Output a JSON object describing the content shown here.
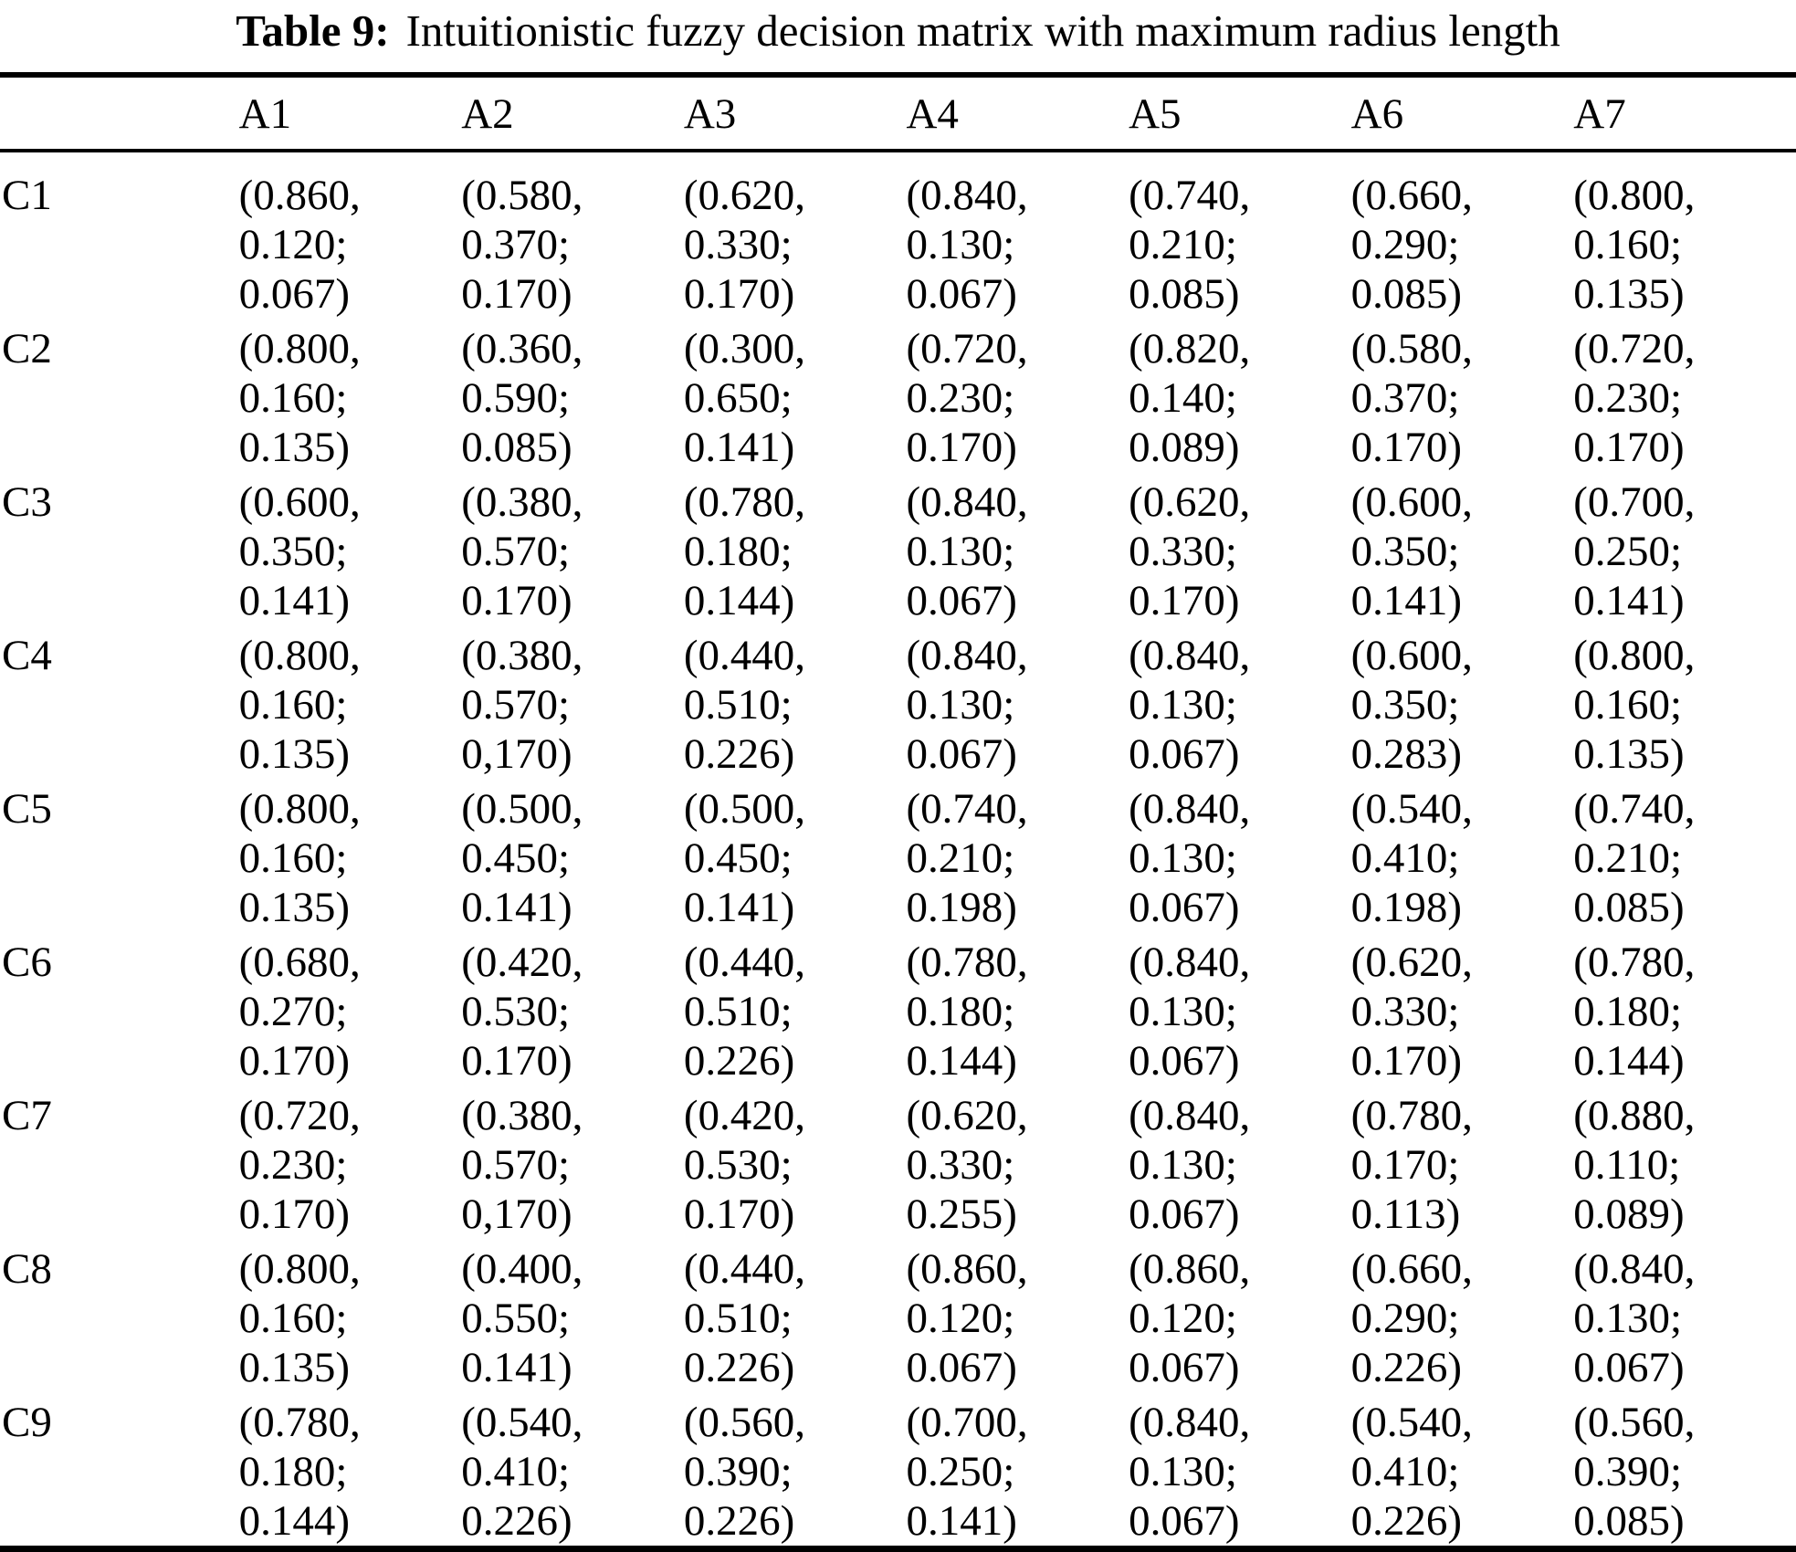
{
  "title": {
    "label": "Table 9:",
    "text": "Intuitionistic fuzzy decision matrix with maximum radius length"
  },
  "table": {
    "columns": [
      "A1",
      "A2",
      "A3",
      "A4",
      "A5",
      "A6",
      "A7"
    ],
    "rows": [
      {
        "label": "C1",
        "cells": [
          [
            "(0.860,",
            "0.120;",
            "0.067)"
          ],
          [
            "(0.580,",
            "0.370;",
            "0.170)"
          ],
          [
            "(0.620,",
            "0.330;",
            "0.170)"
          ],
          [
            "(0.840,",
            "0.130;",
            "0.067)"
          ],
          [
            "(0.740,",
            "0.210;",
            "0.085)"
          ],
          [
            "(0.660,",
            "0.290;",
            "0.085)"
          ],
          [
            "(0.800,",
            "0.160;",
            "0.135)"
          ]
        ]
      },
      {
        "label": "C2",
        "cells": [
          [
            "(0.800,",
            "0.160;",
            "0.135)"
          ],
          [
            "(0.360,",
            "0.590;",
            "0.085)"
          ],
          [
            "(0.300,",
            "0.650;",
            "0.141)"
          ],
          [
            "(0.720,",
            "0.230;",
            "0.170)"
          ],
          [
            "(0.820,",
            "0.140;",
            "0.089)"
          ],
          [
            "(0.580,",
            "0.370;",
            "0.170)"
          ],
          [
            "(0.720,",
            "0.230;",
            "0.170)"
          ]
        ]
      },
      {
        "label": "C3",
        "cells": [
          [
            "(0.600,",
            "0.350;",
            "0.141)"
          ],
          [
            "(0.380,",
            "0.570;",
            "0.170)"
          ],
          [
            "(0.780,",
            "0.180;",
            "0.144)"
          ],
          [
            "(0.840,",
            "0.130;",
            "0.067)"
          ],
          [
            "(0.620,",
            "0.330;",
            "0.170)"
          ],
          [
            "(0.600,",
            "0.350;",
            "0.141)"
          ],
          [
            "(0.700,",
            "0.250;",
            "0.141)"
          ]
        ]
      },
      {
        "label": "C4",
        "cells": [
          [
            "(0.800,",
            "0.160;",
            "0.135)"
          ],
          [
            "(0.380,",
            "0.570;",
            "0,170)"
          ],
          [
            "(0.440,",
            "0.510;",
            "0.226)"
          ],
          [
            "(0.840,",
            "0.130;",
            "0.067)"
          ],
          [
            "(0.840,",
            "0.130;",
            "0.067)"
          ],
          [
            "(0.600,",
            "0.350;",
            "0.283)"
          ],
          [
            "(0.800,",
            "0.160;",
            "0.135)"
          ]
        ]
      },
      {
        "label": "C5",
        "cells": [
          [
            "(0.800,",
            "0.160;",
            "0.135)"
          ],
          [
            "(0.500,",
            "0.450;",
            "0.141)"
          ],
          [
            "(0.500,",
            "0.450;",
            "0.141)"
          ],
          [
            "(0.740,",
            "0.210;",
            "0.198)"
          ],
          [
            "(0.840,",
            "0.130;",
            "0.067)"
          ],
          [
            "(0.540,",
            "0.410;",
            "0.198)"
          ],
          [
            "(0.740,",
            "0.210;",
            "0.085)"
          ]
        ]
      },
      {
        "label": "C6",
        "cells": [
          [
            "(0.680,",
            "0.270;",
            "0.170)"
          ],
          [
            "(0.420,",
            "0.530;",
            "0.170)"
          ],
          [
            "(0.440,",
            "0.510;",
            "0.226)"
          ],
          [
            "(0.780,",
            "0.180;",
            "0.144)"
          ],
          [
            "(0.840,",
            "0.130;",
            "0.067)"
          ],
          [
            "(0.620,",
            "0.330;",
            "0.170)"
          ],
          [
            "(0.780,",
            "0.180;",
            "0.144)"
          ]
        ]
      },
      {
        "label": "C7",
        "cells": [
          [
            "(0.720,",
            "0.230;",
            "0.170)"
          ],
          [
            "(0.380,",
            "0.570;",
            "0,170)"
          ],
          [
            "(0.420,",
            "0.530;",
            "0.170)"
          ],
          [
            "(0.620,",
            "0.330;",
            "0.255)"
          ],
          [
            "(0.840,",
            "0.130;",
            "0.067)"
          ],
          [
            "(0.780,",
            "0.170;",
            "0.113)"
          ],
          [
            "(0.880,",
            "0.110;",
            "0.089)"
          ]
        ]
      },
      {
        "label": "C8",
        "cells": [
          [
            "(0.800,",
            "0.160;",
            "0.135)"
          ],
          [
            "(0.400,",
            "0.550;",
            "0.141)"
          ],
          [
            "(0.440,",
            "0.510;",
            "0.226)"
          ],
          [
            "(0.860,",
            "0.120;",
            "0.067)"
          ],
          [
            "(0.860,",
            "0.120;",
            "0.067)"
          ],
          [
            "(0.660,",
            "0.290;",
            "0.226)"
          ],
          [
            "(0.840,",
            "0.130;",
            "0.067)"
          ]
        ]
      },
      {
        "label": "C9",
        "cells": [
          [
            "(0.780,",
            "0.180;",
            "0.144)"
          ],
          [
            "(0.540,",
            "0.410;",
            "0.226)"
          ],
          [
            "(0.560,",
            "0.390;",
            "0.226)"
          ],
          [
            "(0.700,",
            "0.250;",
            "0.141)"
          ],
          [
            "(0.840,",
            "0.130;",
            "0.067)"
          ],
          [
            "(0.540,",
            "0.410;",
            "0.226)"
          ],
          [
            "(0.560,",
            "0.390;",
            "0.085)"
          ]
        ]
      }
    ]
  }
}
